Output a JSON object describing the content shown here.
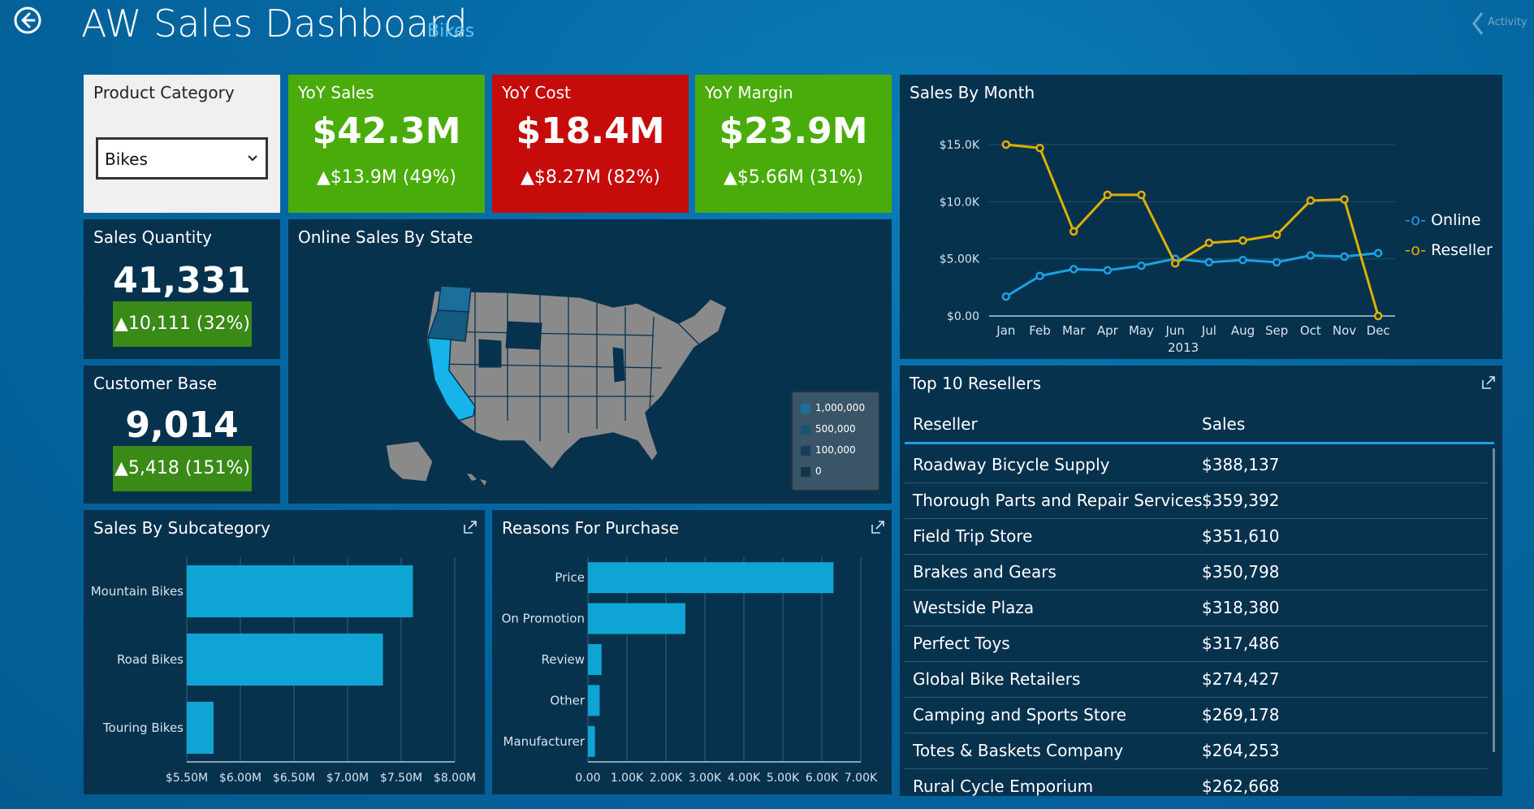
{
  "header": {
    "title": "AW Sales Dashboard",
    "subtitle": "Bikes",
    "activity_label": "Activity"
  },
  "filter": {
    "title": "Product Category",
    "value": "Bikes"
  },
  "kpis": {
    "sales": {
      "title": "YoY Sales",
      "value": "$42.3M",
      "delta": "▲$13.9M (49%)",
      "color": "#4aac0a"
    },
    "cost": {
      "title": "YoY Cost",
      "value": "$18.4M",
      "delta": "▲$8.27M (82%)",
      "color": "#c60b0b"
    },
    "margin": {
      "title": "YoY Margin",
      "value": "$23.9M",
      "delta": "▲$5.66M (31%)",
      "color": "#4aac0a"
    }
  },
  "quantity": {
    "title": "Sales Quantity",
    "value": "41,331",
    "delta": "▲10,111 (32%)"
  },
  "customers": {
    "title": "Customer Base",
    "value": "9,014",
    "delta": "▲5,418 (151%)"
  },
  "map": {
    "title": "Online Sales By State",
    "legend": [
      "1,000,000",
      "500,000",
      "100,000",
      "0"
    ],
    "legend_colors": [
      "#1b6f9a",
      "#1a5577",
      "#173f5a",
      "#16344a"
    ]
  },
  "sales_by_month": {
    "title": "Sales By Month",
    "legend_online": "Online",
    "legend_reseller": "Reseller",
    "year_label": "2013"
  },
  "subcategory": {
    "title": "Sales By Subcategory"
  },
  "reasons": {
    "title": "Reasons For Purchase"
  },
  "resellers": {
    "title": "Top 10 Resellers",
    "col_reseller": "Reseller",
    "col_sales": "Sales",
    "rows": [
      {
        "name": "Roadway Bicycle Supply",
        "sales": "$388,137"
      },
      {
        "name": "Thorough Parts and Repair Services",
        "sales": "$359,392"
      },
      {
        "name": "Field Trip Store",
        "sales": "$351,610"
      },
      {
        "name": "Brakes and Gears",
        "sales": "$350,798"
      },
      {
        "name": "Westside Plaza",
        "sales": "$318,380"
      },
      {
        "name": "Perfect Toys",
        "sales": "$317,486"
      },
      {
        "name": "Global Bike Retailers",
        "sales": "$274,427"
      },
      {
        "name": "Camping and Sports Store",
        "sales": "$269,178"
      },
      {
        "name": "Totes & Baskets Company",
        "sales": "$264,253"
      },
      {
        "name": "Rural Cycle Emporium",
        "sales": "$262,668"
      }
    ]
  },
  "chart_data": [
    {
      "type": "line",
      "title": "Sales By Month",
      "categories": [
        "Jan",
        "Feb",
        "Mar",
        "Apr",
        "May",
        "Jun",
        "Jul",
        "Aug",
        "Sep",
        "Oct",
        "Nov",
        "Dec"
      ],
      "series": [
        {
          "name": "Online",
          "color": "#1ba1e2",
          "values": [
            1.7,
            3.5,
            4.1,
            4.0,
            4.4,
            5.0,
            4.7,
            4.9,
            4.7,
            5.3,
            5.2,
            5.5
          ]
        },
        {
          "name": "Reseller",
          "color": "#e0b000",
          "values": [
            15.0,
            14.7,
            7.4,
            10.6,
            10.6,
            4.6,
            6.4,
            6.6,
            7.1,
            10.1,
            10.2,
            0.0
          ]
        }
      ],
      "y_ticks": [
        "$0.00",
        "$5.00K",
        "$10.0K",
        "$15.0K"
      ],
      "ylim": [
        0,
        15
      ],
      "xlabel": "2013"
    },
    {
      "type": "bar",
      "orientation": "horizontal",
      "title": "Sales By Subcategory",
      "categories": [
        "Mountain Bikes",
        "Road Bikes",
        "Touring Bikes"
      ],
      "values": [
        7.61,
        7.33,
        5.75
      ],
      "x_ticks": [
        "$5.50M",
        "$6.00M",
        "$6.50M",
        "$7.00M",
        "$7.50M",
        "$8.00M"
      ],
      "xlim": [
        5.5,
        8.0
      ]
    },
    {
      "type": "bar",
      "orientation": "horizontal",
      "title": "Reasons For Purchase",
      "categories": [
        "Price",
        "On Promotion",
        "Review",
        "Other",
        "Manufacturer"
      ],
      "values": [
        6.3,
        2.5,
        0.35,
        0.3,
        0.18
      ],
      "x_ticks": [
        "0.00",
        "1.00K",
        "2.00K",
        "3.00K",
        "4.00K",
        "5.00K",
        "6.00K",
        "7.00K"
      ],
      "xlim": [
        0,
        7
      ]
    }
  ]
}
